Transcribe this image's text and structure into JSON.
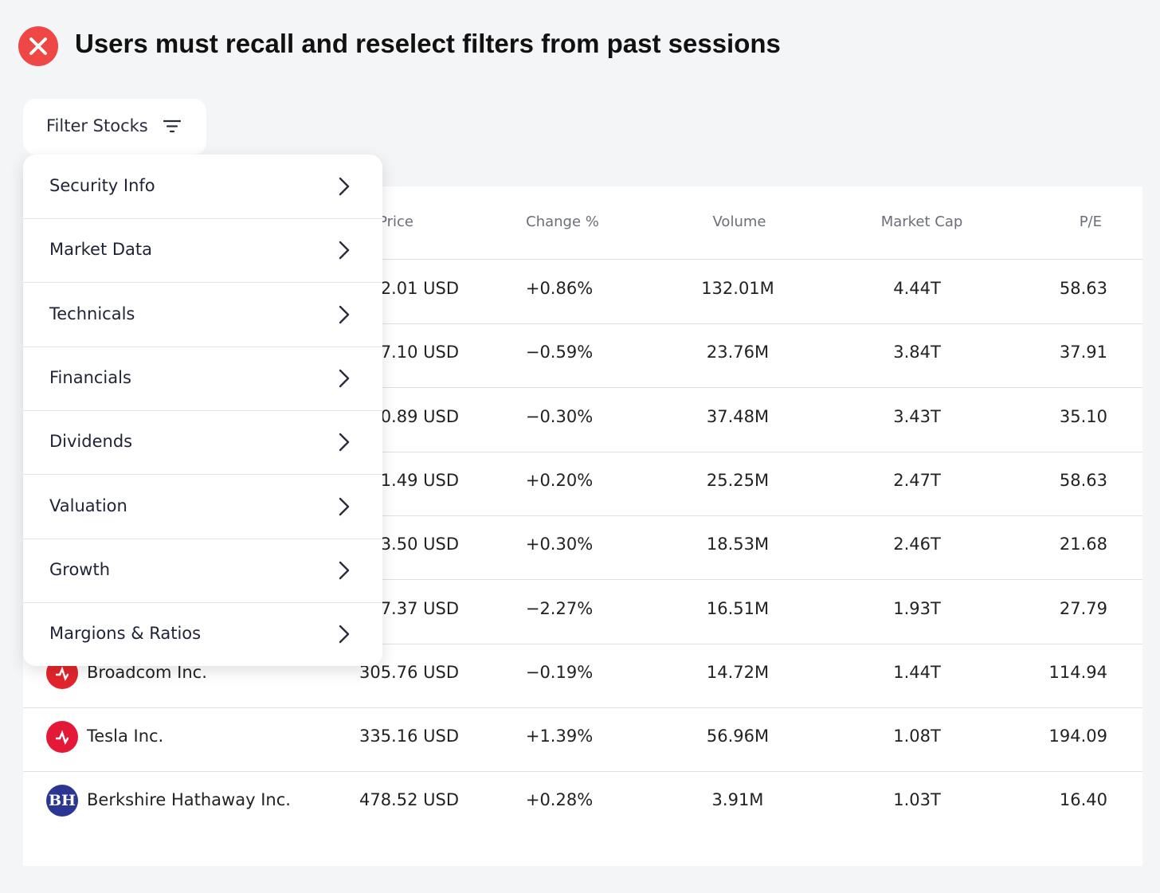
{
  "header": {
    "title": "Users must recall and reselect filters from past sessions"
  },
  "filter_button": {
    "label": "Filter Stocks"
  },
  "menu": {
    "items": [
      "Security Info",
      "Market Data",
      "Technicals",
      "Financials",
      "Dividends",
      "Valuation",
      "Growth",
      "Margions & Ratios"
    ]
  },
  "table": {
    "columns": [
      "Price",
      "Change %",
      "Volume",
      "Market Cap",
      "P/E"
    ],
    "rows": [
      {
        "price": "2.01 USD",
        "change": "+0.86%",
        "volume": "132.01M",
        "market_cap": "4.44T",
        "pe": "58.63"
      },
      {
        "price": "7.10 USD",
        "change": "−0.59%",
        "volume": "23.76M",
        "market_cap": "3.84T",
        "pe": "37.91"
      },
      {
        "price": "0.89 USD",
        "change": "−0.30%",
        "volume": "37.48M",
        "market_cap": "3.43T",
        "pe": "35.10"
      },
      {
        "price": "1.49 USD",
        "change": "+0.20%",
        "volume": "25.25M",
        "market_cap": "2.47T",
        "pe": "58.63"
      },
      {
        "price": "3.50 USD",
        "change": "+0.30%",
        "volume": "18.53M",
        "market_cap": "2.46T",
        "pe": "21.68"
      },
      {
        "price": "7.37 USD",
        "change": "−2.27%",
        "volume": "16.51M",
        "market_cap": "1.93T",
        "pe": "27.79"
      },
      {
        "name": "Broadcom Inc.",
        "price": "305.76 USD",
        "change": "−0.19%",
        "volume": "14.72M",
        "market_cap": "1.44T",
        "pe": "114.94"
      },
      {
        "name": "Tesla Inc.",
        "price": "335.16 USD",
        "change": "+1.39%",
        "volume": "56.96M",
        "market_cap": "1.08T",
        "pe": "194.09"
      },
      {
        "name": "Berkshire Hathaway Inc.",
        "logo": "BH",
        "price": "478.52 USD",
        "change": "+0.28%",
        "volume": "3.91M",
        "market_cap": "1.03T",
        "pe": "16.40"
      }
    ]
  }
}
